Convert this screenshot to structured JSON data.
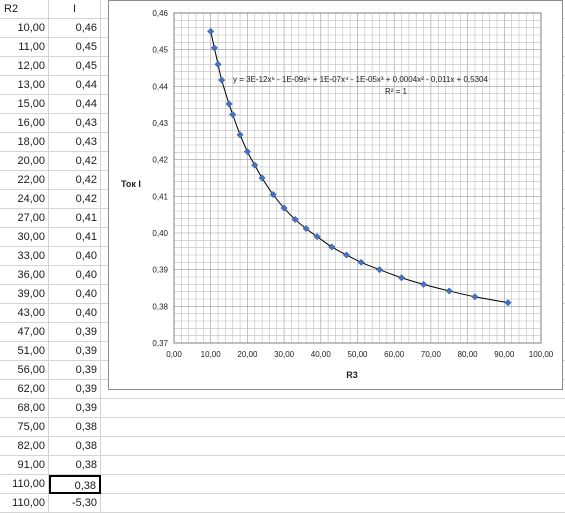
{
  "sheet": {
    "col_headers": [
      "R2",
      "I"
    ],
    "rows": [
      [
        "10,00",
        "0,46"
      ],
      [
        "11,00",
        "0,45"
      ],
      [
        "12,00",
        "0,45"
      ],
      [
        "13,00",
        "0,44"
      ],
      [
        "15,00",
        "0,44"
      ],
      [
        "16,00",
        "0,43"
      ],
      [
        "18,00",
        "0,43"
      ],
      [
        "20,00",
        "0,42"
      ],
      [
        "22,00",
        "0,42"
      ],
      [
        "24,00",
        "0,42"
      ],
      [
        "27,00",
        "0,41"
      ],
      [
        "30,00",
        "0,41"
      ],
      [
        "33,00",
        "0,40"
      ],
      [
        "36,00",
        "0,40"
      ],
      [
        "39,00",
        "0,40"
      ],
      [
        "43,00",
        "0,40"
      ],
      [
        "47,00",
        "0,39"
      ],
      [
        "51,00",
        "0,39"
      ],
      [
        "56,00",
        "0,39"
      ],
      [
        "62,00",
        "0,39"
      ],
      [
        "68,00",
        "0,39"
      ],
      [
        "75,00",
        "0,38"
      ],
      [
        "82,00",
        "0,38"
      ],
      [
        "91,00",
        "0,38"
      ],
      [
        "110,00",
        "0,38"
      ],
      [
        "110,00",
        "-5,30"
      ]
    ],
    "selected_row": 24
  },
  "chart_data": {
    "type": "scatter",
    "xlabel": "R3",
    "ylabel": "Ток I",
    "equation": "y = 3E-12x⁶ - 1E-09x⁵ + 1E-07x⁴ - 1E-05x³ + 0,0004x² - 0,011x + 0,5304",
    "r_squared": "R² = 1",
    "xlim": [
      0,
      100
    ],
    "ylim": [
      0.37,
      0.46
    ],
    "x_ticks": [
      "0,00",
      "10,00",
      "20,00",
      "30,00",
      "40,00",
      "50,00",
      "60,00",
      "70,00",
      "80,00",
      "90,00",
      "100,00"
    ],
    "y_ticks": [
      "0,37",
      "0,38",
      "0,39",
      "0,40",
      "0,41",
      "0,42",
      "0,43",
      "0,44",
      "0,45",
      "0,46"
    ],
    "grid": true,
    "points": [
      [
        10,
        0.455
      ],
      [
        11,
        0.4505
      ],
      [
        12,
        0.446
      ],
      [
        13,
        0.4417
      ],
      [
        15,
        0.4352
      ],
      [
        16,
        0.4323
      ],
      [
        18,
        0.4268
      ],
      [
        20,
        0.4222
      ],
      [
        22,
        0.4185
      ],
      [
        24,
        0.415
      ],
      [
        27,
        0.4105
      ],
      [
        30,
        0.4068
      ],
      [
        33,
        0.4037
      ],
      [
        36,
        0.4012
      ],
      [
        39,
        0.399
      ],
      [
        43,
        0.3962
      ],
      [
        47,
        0.394
      ],
      [
        51,
        0.392
      ],
      [
        56,
        0.39
      ],
      [
        62,
        0.3878
      ],
      [
        68,
        0.386
      ],
      [
        75,
        0.3842
      ],
      [
        82,
        0.3826
      ],
      [
        91,
        0.381
      ]
    ],
    "colors": {
      "marker": "#4472c4",
      "line": "#000000",
      "grid": "#bfbfbf"
    }
  }
}
